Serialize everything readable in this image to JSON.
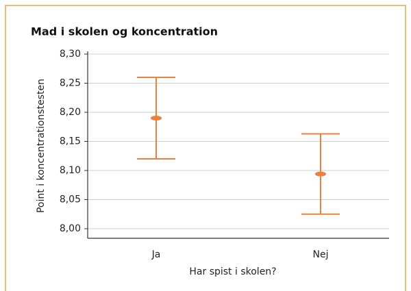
{
  "chart_data": {
    "type": "errorbar",
    "title": "Mad i skolen og koncentration",
    "x_label": "Har spist i skolen?",
    "y_label": "Point i koncentrationstesten",
    "categories": [
      "Ja",
      "Nej"
    ],
    "values": [
      8.19,
      8.094
    ],
    "errors": [
      0.07,
      0.069
    ],
    "color": "#f07f3c",
    "ylim": [
      8.0,
      8.3
    ],
    "yticks": [
      {
        "value": 8.0,
        "label": "8,00"
      },
      {
        "value": 8.05,
        "label": "8,05"
      },
      {
        "value": 8.1,
        "label": "8,10"
      },
      {
        "value": 8.15,
        "label": "8,15"
      },
      {
        "value": 8.2,
        "label": "8,20"
      },
      {
        "value": 8.25,
        "label": "8,25"
      },
      {
        "value": 8.3,
        "label": "8,30"
      }
    ],
    "grid": true
  }
}
